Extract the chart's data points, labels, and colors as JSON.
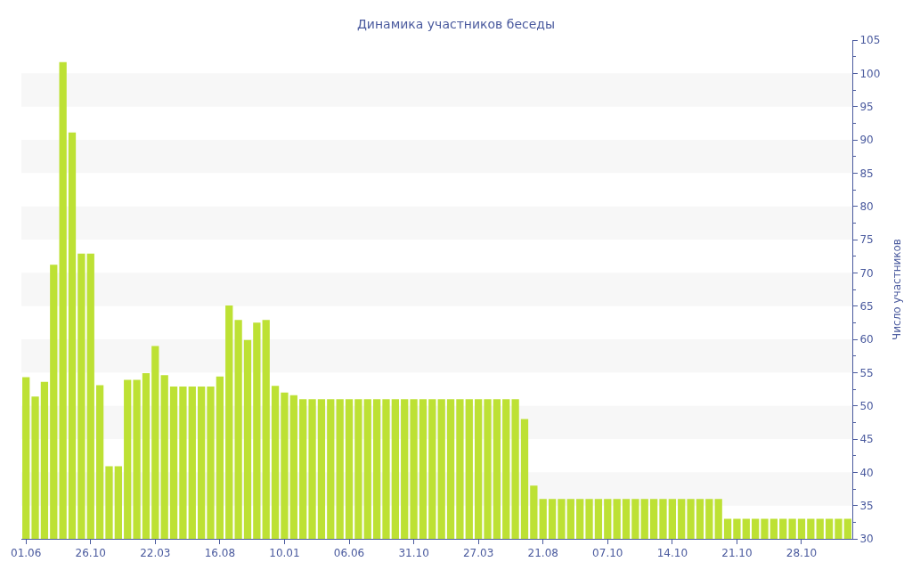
{
  "chart_data": {
    "type": "bar",
    "title": "Динамика участников беседы",
    "ylabel": "Число участников",
    "categories": [
      "01.06",
      null,
      null,
      null,
      null,
      null,
      null,
      "26.10",
      null,
      null,
      null,
      null,
      null,
      null,
      "22.03",
      null,
      null,
      null,
      null,
      null,
      null,
      "16.08",
      null,
      null,
      null,
      null,
      null,
      null,
      "10.01",
      null,
      null,
      null,
      null,
      null,
      null,
      "06.06",
      null,
      null,
      null,
      null,
      null,
      null,
      "31.10",
      null,
      null,
      null,
      null,
      null,
      null,
      "27.03",
      null,
      null,
      null,
      null,
      null,
      null,
      "21.08",
      null,
      null,
      null,
      null,
      null,
      null,
      "07.10",
      null,
      null,
      null,
      null,
      null,
      null,
      "14.10",
      null,
      null,
      null,
      null,
      null,
      null,
      "21.10",
      null,
      null,
      null,
      null,
      null,
      null,
      "28.10",
      null,
      null,
      null,
      null,
      null
    ],
    "series": [
      {
        "color": "#bde134",
        "values": [
          54.3,
          51.4,
          53.6,
          71.2,
          101.7,
          91.1,
          72.9,
          72.9,
          53.1,
          40.9,
          40.9,
          53.9,
          53.9,
          54.9,
          59.0,
          54.6,
          52.9,
          52.9,
          52.9,
          52.9,
          52.9,
          54.4,
          65.1,
          62.9,
          59.9,
          62.5,
          62.9,
          53.0,
          52.0,
          51.6,
          51,
          51,
          51,
          51,
          51,
          51,
          51,
          51,
          51,
          51,
          51,
          51,
          51,
          51,
          51,
          51,
          51,
          51,
          51,
          51,
          51,
          51,
          51,
          51,
          48,
          38,
          36,
          36,
          36,
          36,
          36,
          36,
          36,
          36,
          36,
          36,
          36,
          36,
          36,
          36,
          36,
          36,
          36,
          36,
          36,
          36,
          33,
          33,
          33,
          33,
          33,
          33,
          33,
          33,
          33,
          33,
          33,
          33,
          33,
          33
        ]
      }
    ],
    "ylim": [
      30,
      105
    ],
    "yticks": [
      30,
      35,
      40,
      45,
      50,
      55,
      60,
      65,
      70,
      75,
      80,
      85,
      90,
      95,
      100,
      105
    ],
    "grid": false,
    "bands": [
      {
        "axis": "y",
        "from": 35,
        "to": 40,
        "color": "#f7f7f7"
      },
      {
        "axis": "y",
        "from": 45,
        "to": 50,
        "color": "#f7f7f7"
      },
      {
        "axis": "y",
        "from": 55,
        "to": 60,
        "color": "#f7f7f7"
      },
      {
        "axis": "y",
        "from": 65,
        "to": 70,
        "color": "#f7f7f7"
      },
      {
        "axis": "y",
        "from": 75,
        "to": 80,
        "color": "#f7f7f7"
      },
      {
        "axis": "y",
        "from": 85,
        "to": 90,
        "color": "#f7f7f7"
      },
      {
        "axis": "y",
        "from": 95,
        "to": 100,
        "color": "#f7f7f7"
      }
    ]
  }
}
